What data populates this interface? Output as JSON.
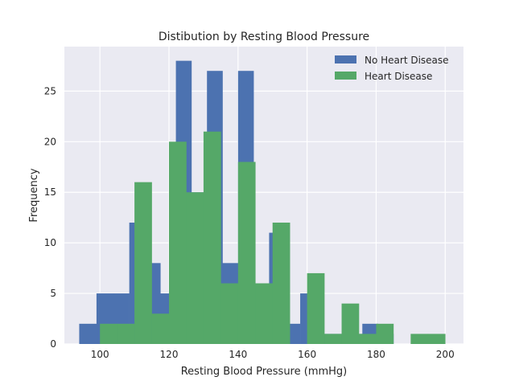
{
  "chart_data": {
    "type": "bar",
    "title": "Distibution by Resting Blood Pressure",
    "xlabel": "Resting Blood Pressure (mmHg)",
    "ylabel": "Frequency",
    "xlim": [
      89.7,
      205.3
    ],
    "ylim": [
      0,
      29.4
    ],
    "xticks": [
      100,
      120,
      140,
      160,
      180,
      200
    ],
    "yticks": [
      0,
      5,
      10,
      15,
      20,
      25
    ],
    "grid": true,
    "legend_position": "top-right",
    "series": [
      {
        "name": "No Heart Disease",
        "color": "#4c72b0",
        "bins": [
          {
            "x0": 94,
            "x1": 99,
            "count": 2
          },
          {
            "x0": 99,
            "x1": 104,
            "count": 5
          },
          {
            "x0": 104,
            "x1": 108.5,
            "count": 5
          },
          {
            "x0": 108.5,
            "x1": 113,
            "count": 12
          },
          {
            "x0": 113,
            "x1": 117.5,
            "count": 8
          },
          {
            "x0": 117.5,
            "x1": 122,
            "count": 5
          },
          {
            "x0": 122,
            "x1": 126.5,
            "count": 28
          },
          {
            "x0": 126.5,
            "x1": 131,
            "count": 15
          },
          {
            "x0": 131,
            "x1": 135.5,
            "count": 27
          },
          {
            "x0": 135.5,
            "x1": 140,
            "count": 8
          },
          {
            "x0": 140,
            "x1": 144.5,
            "count": 27
          },
          {
            "x0": 144.5,
            "x1": 149,
            "count": 5
          },
          {
            "x0": 149,
            "x1": 153.5,
            "count": 11
          },
          {
            "x0": 153.5,
            "x1": 158,
            "count": 2
          },
          {
            "x0": 158,
            "x1": 162.5,
            "count": 5
          },
          {
            "x0": 162.5,
            "x1": 167,
            "count": 1
          },
          {
            "x0": 167,
            "x1": 171.5,
            "count": 1
          },
          {
            "x0": 171.5,
            "x1": 176,
            "count": 1
          },
          {
            "x0": 176,
            "x1": 180.5,
            "count": 2
          },
          {
            "x0": 180.5,
            "x1": 185,
            "count": 1
          }
        ]
      },
      {
        "name": "Heart Disease",
        "color": "#55a868",
        "bins": [
          {
            "x0": 100,
            "x1": 105,
            "count": 2
          },
          {
            "x0": 105,
            "x1": 110,
            "count": 2
          },
          {
            "x0": 110,
            "x1": 115,
            "count": 16
          },
          {
            "x0": 115,
            "x1": 120,
            "count": 3
          },
          {
            "x0": 120,
            "x1": 125,
            "count": 20
          },
          {
            "x0": 125,
            "x1": 130,
            "count": 15
          },
          {
            "x0": 130,
            "x1": 135,
            "count": 21
          },
          {
            "x0": 135,
            "x1": 140,
            "count": 6
          },
          {
            "x0": 140,
            "x1": 145,
            "count": 18
          },
          {
            "x0": 145,
            "x1": 150,
            "count": 6
          },
          {
            "x0": 150,
            "x1": 155,
            "count": 12
          },
          {
            "x0": 155,
            "x1": 160,
            "count": 0
          },
          {
            "x0": 160,
            "x1": 165,
            "count": 7
          },
          {
            "x0": 165,
            "x1": 170,
            "count": 1
          },
          {
            "x0": 170,
            "x1": 175,
            "count": 4
          },
          {
            "x0": 175,
            "x1": 180,
            "count": 1
          },
          {
            "x0": 180,
            "x1": 185,
            "count": 2
          },
          {
            "x0": 185,
            "x1": 190,
            "count": 0
          },
          {
            "x0": 190,
            "x1": 195,
            "count": 1
          },
          {
            "x0": 195,
            "x1": 200,
            "count": 1
          }
        ]
      }
    ]
  }
}
